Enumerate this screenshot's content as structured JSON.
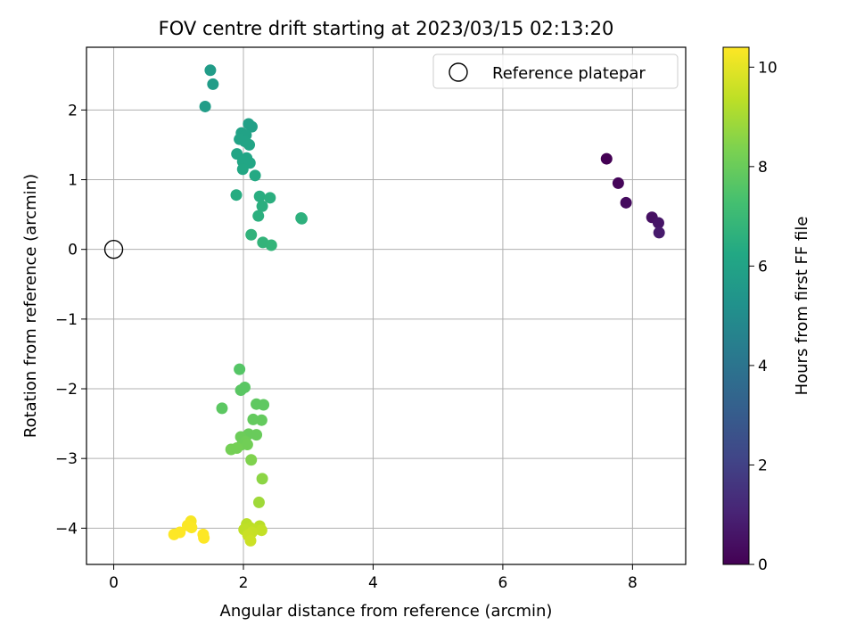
{
  "chart_data": {
    "type": "scatter",
    "title": "FOV centre drift starting at 2023/03/15 02:13:20",
    "xlabel": "Angular distance from reference (arcmin)",
    "ylabel": "Rotation from reference (arcmin)",
    "xlim": [
      -0.42,
      8.82
    ],
    "ylim": [
      -4.52,
      2.9
    ],
    "xticks": [
      0,
      2,
      4,
      6,
      8
    ],
    "yticks": [
      -4,
      -3,
      -2,
      -1,
      0,
      1,
      2
    ],
    "grid": true,
    "legend": {
      "placement": "top-right",
      "entries": [
        "Reference platepar"
      ]
    },
    "reference_point": {
      "x": 0,
      "y": 0,
      "label": "Reference platepar"
    },
    "colorbar": {
      "label": "Hours from first FF file",
      "range": [
        0,
        10.4
      ],
      "ticks": [
        0,
        2,
        4,
        6,
        8,
        10
      ],
      "colormap": "viridis"
    },
    "points": [
      {
        "x": 7.6,
        "y": 1.3,
        "h": 0.0
      },
      {
        "x": 7.78,
        "y": 0.95,
        "h": 0.15
      },
      {
        "x": 7.9,
        "y": 0.67,
        "h": 0.3
      },
      {
        "x": 8.3,
        "y": 0.46,
        "h": 0.45
      },
      {
        "x": 8.4,
        "y": 0.38,
        "h": 0.6
      },
      {
        "x": 8.41,
        "y": 0.24,
        "h": 0.75
      },
      {
        "x": 1.49,
        "y": 2.57,
        "h": 5.7
      },
      {
        "x": 1.53,
        "y": 2.37,
        "h": 5.7
      },
      {
        "x": 1.41,
        "y": 2.05,
        "h": 5.75
      },
      {
        "x": 2.08,
        "y": 1.8,
        "h": 5.9
      },
      {
        "x": 2.13,
        "y": 1.76,
        "h": 5.9
      },
      {
        "x": 1.97,
        "y": 1.67,
        "h": 5.95
      },
      {
        "x": 2.04,
        "y": 1.64,
        "h": 5.95
      },
      {
        "x": 1.94,
        "y": 1.58,
        "h": 6.0
      },
      {
        "x": 2.02,
        "y": 1.55,
        "h": 6.0
      },
      {
        "x": 2.09,
        "y": 1.5,
        "h": 6.05
      },
      {
        "x": 1.9,
        "y": 1.37,
        "h": 6.1
      },
      {
        "x": 2.05,
        "y": 1.31,
        "h": 6.1
      },
      {
        "x": 1.99,
        "y": 1.26,
        "h": 6.15
      },
      {
        "x": 2.1,
        "y": 1.24,
        "h": 6.15
      },
      {
        "x": 1.99,
        "y": 1.15,
        "h": 6.2
      },
      {
        "x": 2.18,
        "y": 1.06,
        "h": 6.3
      },
      {
        "x": 1.89,
        "y": 0.78,
        "h": 6.4
      },
      {
        "x": 2.25,
        "y": 0.76,
        "h": 6.45
      },
      {
        "x": 2.41,
        "y": 0.74,
        "h": 6.5
      },
      {
        "x": 2.29,
        "y": 0.62,
        "h": 6.5
      },
      {
        "x": 2.23,
        "y": 0.48,
        "h": 6.55
      },
      {
        "x": 2.89,
        "y": 0.45,
        "h": 6.6
      },
      {
        "x": 2.9,
        "y": 0.44,
        "h": 6.6
      },
      {
        "x": 2.12,
        "y": 0.21,
        "h": 6.7
      },
      {
        "x": 2.3,
        "y": 0.1,
        "h": 6.75
      },
      {
        "x": 2.43,
        "y": 0.06,
        "h": 6.8
      },
      {
        "x": 1.94,
        "y": -1.72,
        "h": 7.6
      },
      {
        "x": 2.02,
        "y": -1.98,
        "h": 7.7
      },
      {
        "x": 1.96,
        "y": -2.02,
        "h": 7.7
      },
      {
        "x": 1.67,
        "y": -2.28,
        "h": 7.75
      },
      {
        "x": 2.2,
        "y": -2.22,
        "h": 7.8
      },
      {
        "x": 2.31,
        "y": -2.23,
        "h": 7.8
      },
      {
        "x": 2.15,
        "y": -2.44,
        "h": 7.9
      },
      {
        "x": 2.28,
        "y": -2.45,
        "h": 7.9
      },
      {
        "x": 2.08,
        "y": -2.65,
        "h": 8.0
      },
      {
        "x": 2.2,
        "y": -2.66,
        "h": 8.0
      },
      {
        "x": 1.96,
        "y": -2.69,
        "h": 8.05
      },
      {
        "x": 2.03,
        "y": -2.76,
        "h": 8.1
      },
      {
        "x": 1.98,
        "y": -2.8,
        "h": 8.1
      },
      {
        "x": 2.06,
        "y": -2.8,
        "h": 8.15
      },
      {
        "x": 1.81,
        "y": -2.87,
        "h": 8.2
      },
      {
        "x": 1.9,
        "y": -2.85,
        "h": 8.2
      },
      {
        "x": 2.12,
        "y": -3.02,
        "h": 8.4
      },
      {
        "x": 2.29,
        "y": -3.29,
        "h": 8.6
      },
      {
        "x": 2.24,
        "y": -3.63,
        "h": 8.9
      },
      {
        "x": 2.05,
        "y": -3.94,
        "h": 9.3
      },
      {
        "x": 2.25,
        "y": -3.97,
        "h": 9.3
      },
      {
        "x": 2.1,
        "y": -3.99,
        "h": 9.35
      },
      {
        "x": 2.01,
        "y": -4.02,
        "h": 9.4
      },
      {
        "x": 2.17,
        "y": -4.02,
        "h": 9.4
      },
      {
        "x": 2.28,
        "y": -4.03,
        "h": 9.45
      },
      {
        "x": 2.13,
        "y": -4.06,
        "h": 9.5
      },
      {
        "x": 2.07,
        "y": -4.1,
        "h": 9.55
      },
      {
        "x": 2.11,
        "y": -4.18,
        "h": 9.6
      },
      {
        "x": 1.19,
        "y": -3.9,
        "h": 10.3
      },
      {
        "x": 1.14,
        "y": -3.96,
        "h": 10.35
      },
      {
        "x": 1.2,
        "y": -3.99,
        "h": 10.35
      },
      {
        "x": 1.02,
        "y": -4.06,
        "h": 10.4
      },
      {
        "x": 0.93,
        "y": -4.09,
        "h": 10.4
      },
      {
        "x": 1.38,
        "y": -4.09,
        "h": 10.4
      },
      {
        "x": 1.39,
        "y": -4.14,
        "h": 10.4
      }
    ]
  }
}
